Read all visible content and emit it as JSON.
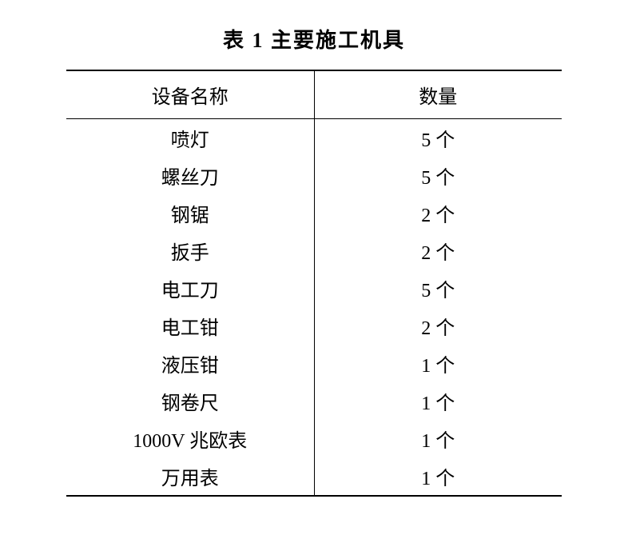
{
  "title": "表 1   主要施工机具",
  "table": {
    "columns": [
      "设备名称",
      "数量"
    ],
    "rows": [
      [
        "喷灯",
        "5 个"
      ],
      [
        "螺丝刀",
        "5 个"
      ],
      [
        "钢锯",
        "2 个"
      ],
      [
        "扳手",
        "2 个"
      ],
      [
        "电工刀",
        "5 个"
      ],
      [
        "电工钳",
        "2 个"
      ],
      [
        "液压钳",
        "1 个"
      ],
      [
        "钢卷尺",
        "1 个"
      ],
      [
        "1000V 兆欧表",
        "1 个"
      ],
      [
        "万用表",
        "1 个"
      ]
    ],
    "title_fontsize": 26,
    "cell_fontsize": 24,
    "border_color": "#000000",
    "background_color": "#ffffff"
  }
}
